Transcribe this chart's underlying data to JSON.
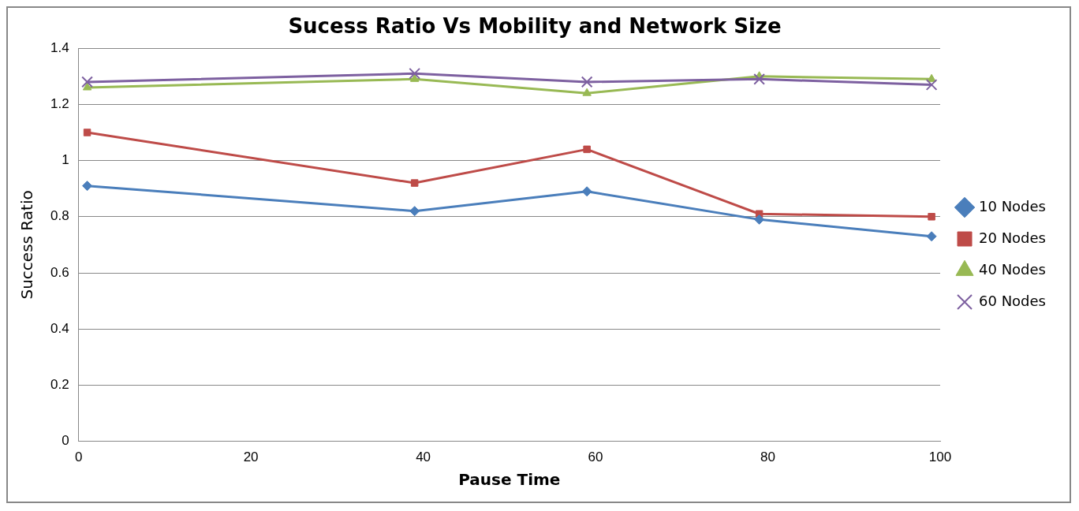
{
  "chart_data": {
    "type": "line",
    "title": "Sucess Ratio Vs Mobility and Network Size",
    "xlabel": "Pause Time",
    "ylabel": "Success Ratio",
    "x": [
      1,
      39,
      59,
      79,
      99
    ],
    "series": [
      {
        "name": "10 Nodes",
        "color": "#4a7ebb",
        "marker": "diamond",
        "values": [
          0.91,
          0.82,
          0.89,
          0.79,
          0.73
        ]
      },
      {
        "name": "20 Nodes",
        "color": "#be4b48",
        "marker": "square",
        "values": [
          1.1,
          0.92,
          1.04,
          0.81,
          0.8
        ]
      },
      {
        "name": "40 Nodes",
        "color": "#98b954",
        "marker": "triangle",
        "values": [
          1.26,
          1.29,
          1.24,
          1.3,
          1.29
        ]
      },
      {
        "name": "60 Nodes",
        "color": "#7d60a0",
        "marker": "cross",
        "values": [
          1.28,
          1.31,
          1.28,
          1.29,
          1.27
        ]
      }
    ],
    "xlim": [
      0,
      100
    ],
    "xticks": [
      0,
      20,
      40,
      60,
      80,
      100
    ],
    "ylim": [
      0,
      1.4
    ],
    "yticks": [
      0,
      0.2,
      0.4,
      0.6,
      0.8,
      1,
      1.2,
      1.4
    ],
    "grid": "y",
    "legend": "right",
    "line_style": "solid"
  }
}
